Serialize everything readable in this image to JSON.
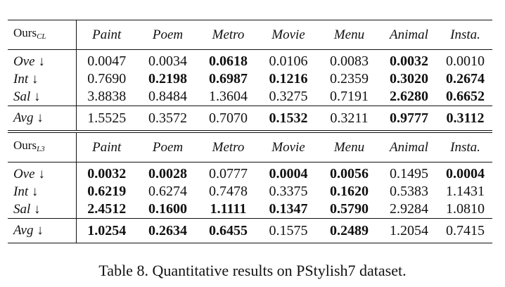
{
  "table": {
    "columns": [
      "Paint",
      "Poem",
      "Metro",
      "Movie",
      "Menu",
      "Animal",
      "Insta."
    ],
    "blocks": [
      {
        "header_main": "Ours",
        "header_sub": "CL",
        "rows": [
          {
            "label": "Ove ↓",
            "values": [
              "0.0047",
              "0.0034",
              "0.0618",
              "0.0106",
              "0.0083",
              "0.0032",
              "0.0010"
            ],
            "bold": [
              false,
              false,
              true,
              false,
              false,
              true,
              false
            ]
          },
          {
            "label": "Int ↓",
            "values": [
              "0.7690",
              "0.2198",
              "0.6987",
              "0.1216",
              "0.2359",
              "0.3020",
              "0.2674"
            ],
            "bold": [
              false,
              true,
              true,
              true,
              false,
              true,
              true
            ]
          },
          {
            "label": "Sal ↓",
            "values": [
              "3.8838",
              "0.8484",
              "1.3604",
              "0.3275",
              "0.7191",
              "2.6280",
              "0.6652"
            ],
            "bold": [
              false,
              false,
              false,
              false,
              false,
              true,
              true
            ]
          }
        ],
        "avg": {
          "label": "Avg ↓",
          "values": [
            "1.5525",
            "0.3572",
            "0.7070",
            "0.1532",
            "0.3211",
            "0.9777",
            "0.3112"
          ],
          "bold": [
            false,
            false,
            false,
            true,
            false,
            true,
            true
          ]
        }
      },
      {
        "header_main": "Ours",
        "header_sub": "L3",
        "rows": [
          {
            "label": "Ove ↓",
            "values": [
              "0.0032",
              "0.0028",
              "0.0777",
              "0.0004",
              "0.0056",
              "0.1495",
              "0.0004"
            ],
            "bold": [
              true,
              true,
              false,
              true,
              true,
              false,
              true
            ]
          },
          {
            "label": "Int ↓",
            "values": [
              "0.6219",
              "0.6274",
              "0.7478",
              "0.3375",
              "0.1620",
              "0.5383",
              "1.1431"
            ],
            "bold": [
              true,
              false,
              false,
              false,
              true,
              false,
              false
            ]
          },
          {
            "label": "Sal ↓",
            "values": [
              "2.4512",
              "0.1600",
              "1.1111",
              "0.1347",
              "0.5790",
              "2.9284",
              "1.0810"
            ],
            "bold": [
              true,
              true,
              true,
              true,
              true,
              false,
              false
            ]
          }
        ],
        "avg": {
          "label": "Avg ↓",
          "values": [
            "1.0254",
            "0.2634",
            "0.6455",
            "0.1575",
            "0.2489",
            "1.2054",
            "0.7415"
          ],
          "bold": [
            true,
            true,
            true,
            false,
            true,
            false,
            false
          ]
        }
      }
    ]
  },
  "caption": "Table 8. Quantitative results on PStylish7 dataset."
}
